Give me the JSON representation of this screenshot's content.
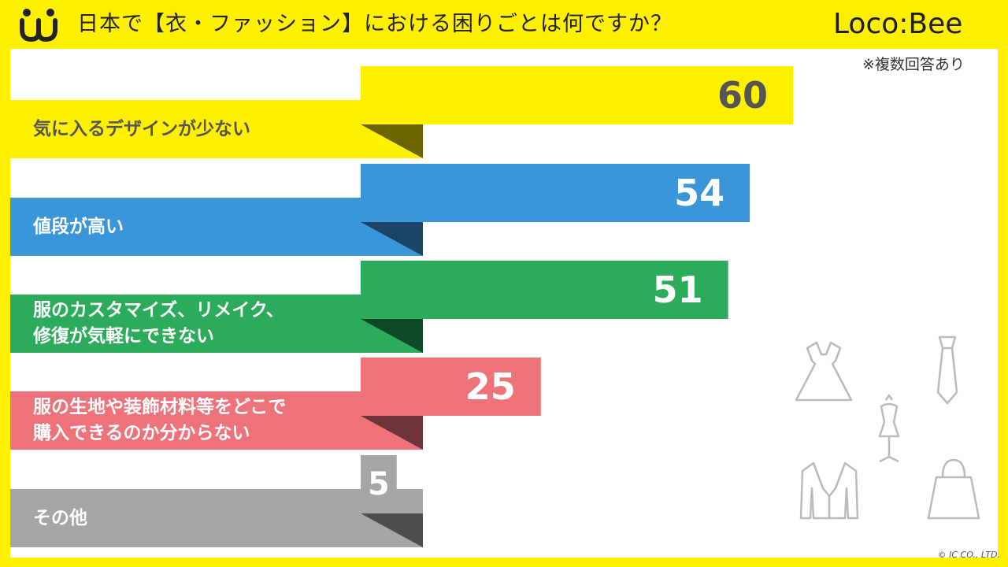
{
  "header": {
    "title": "日本で【衣・ファッション】における困りごとは何ですか？",
    "logo": "Loco:Bee"
  },
  "note": "※複数回答あり",
  "copyright": "© IC CO., LTD.",
  "colors": {
    "background": "#FFF000",
    "series": [
      "#FFF000",
      "#3A96D8",
      "#2DAB5C",
      "#EE727A",
      "#A6A6A6"
    ],
    "shadows": [
      "#6B6400",
      "#1B4466",
      "#0F4A26",
      "#6E3338",
      "#4D4D4D"
    ],
    "value_text": [
      "#555555",
      "#ffffff",
      "#ffffff",
      "#ffffff",
      "#ffffff"
    ],
    "icon": "#BBBBBB"
  },
  "decor_icons": [
    "dress-icon",
    "necktie-icon",
    "mannequin-icon",
    "jacket-icon",
    "handbag-icon"
  ],
  "chart_data": {
    "type": "bar",
    "orientation": "horizontal",
    "categories": [
      "気に入るデザインが少ない",
      "値段が高い",
      "服のカスタマイズ、リメイク、\n修復が気軽にできない",
      "服の生地や装飾材料等をどこで\n購入できるのか分からない",
      "その他"
    ],
    "values": [
      60,
      54,
      51,
      25,
      5
    ],
    "xlim": [
      0,
      60
    ],
    "grid": false,
    "legend": "none"
  }
}
